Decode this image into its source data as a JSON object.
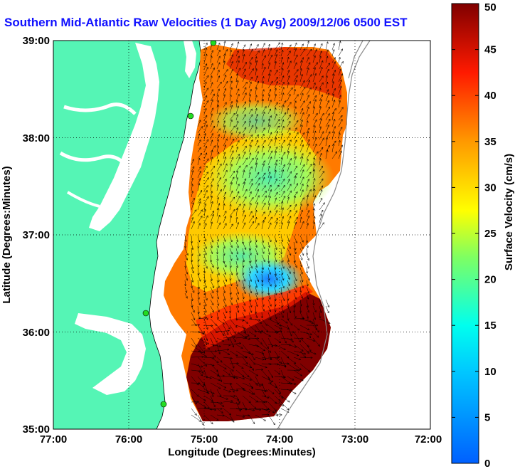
{
  "title": "Southern Mid-Atlantic Raw Velocities (1 Day Avg) 2009/12/06 0500 EST",
  "map": {
    "xlabel": "Longitude (Degrees:Minutes)",
    "ylabel": "Latitude (Degrees:Minutes)",
    "lon_ticks": [
      "77:00",
      "76:00",
      "75:00",
      "74:00",
      "73:00",
      "72:00"
    ],
    "lat_ticks": [
      "39:00",
      "38:00",
      "37:00",
      "36:00",
      "35:00"
    ],
    "lon_range": [
      -77,
      -72
    ],
    "lat_range": [
      35,
      39
    ],
    "land_color": "#55f5b5",
    "water_color": "#ffffff",
    "stations_color": "#22dd22"
  },
  "colorbar": {
    "label": "Surface Velocity (cm/s)",
    "ticks": [
      "0",
      "5",
      "10",
      "15",
      "20",
      "25",
      "30",
      "35",
      "40",
      "45",
      "50"
    ],
    "range": [
      0,
      50
    ],
    "colors": [
      "#0060ff",
      "#00ffff",
      "#ffff00",
      "#ff9900",
      "#ff0000",
      "#800000"
    ]
  }
}
